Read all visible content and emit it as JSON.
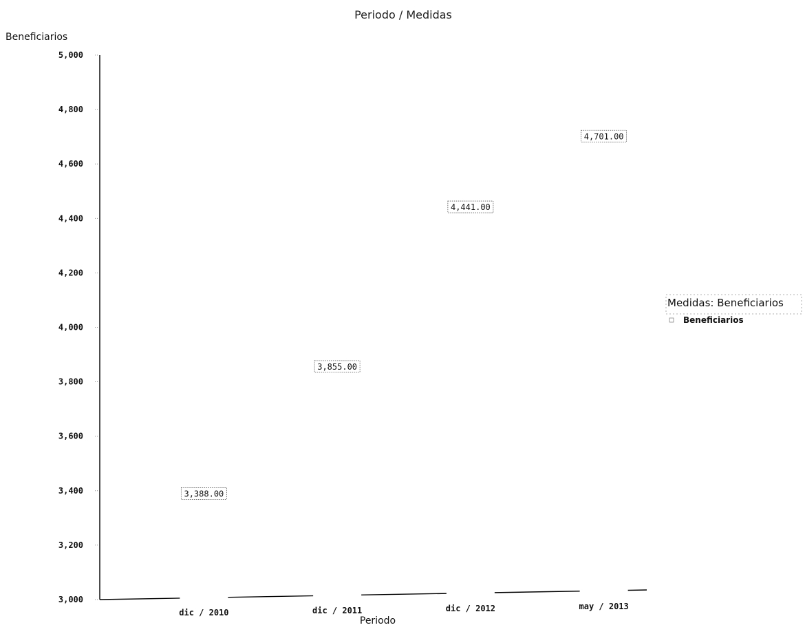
{
  "chart_data": {
    "type": "bar",
    "title": "Periodo / Medidas",
    "xlabel": "Periodo",
    "ylabel": "Beneficiarios",
    "categories": [
      "dic / 2010",
      "dic / 2011",
      "dic / 2012",
      "may / 2013"
    ],
    "series": [
      {
        "name": "Beneficiarios",
        "values": [
          3388,
          3855,
          4441,
          4701
        ]
      }
    ],
    "data_labels": [
      "3,388.00",
      "3,855.00",
      "4,441.00",
      "4,701.00"
    ],
    "ylim": [
      3000,
      5000
    ],
    "yticks": [
      3000,
      3200,
      3400,
      3600,
      3800,
      4000,
      4200,
      4400,
      4600,
      4800,
      5000
    ],
    "ytick_labels": [
      "3,000",
      "3,200",
      "3,400",
      "3,600",
      "3,800",
      "4,000",
      "4,200",
      "4,400",
      "4,600",
      "4,800",
      "5,000"
    ],
    "grid": false,
    "legend": {
      "title": "Medidas: Beneficiarios",
      "placement": "right",
      "entries": [
        "Beneficiarios"
      ]
    },
    "bar_color": "#ffffff",
    "axis_color": "#000000"
  }
}
